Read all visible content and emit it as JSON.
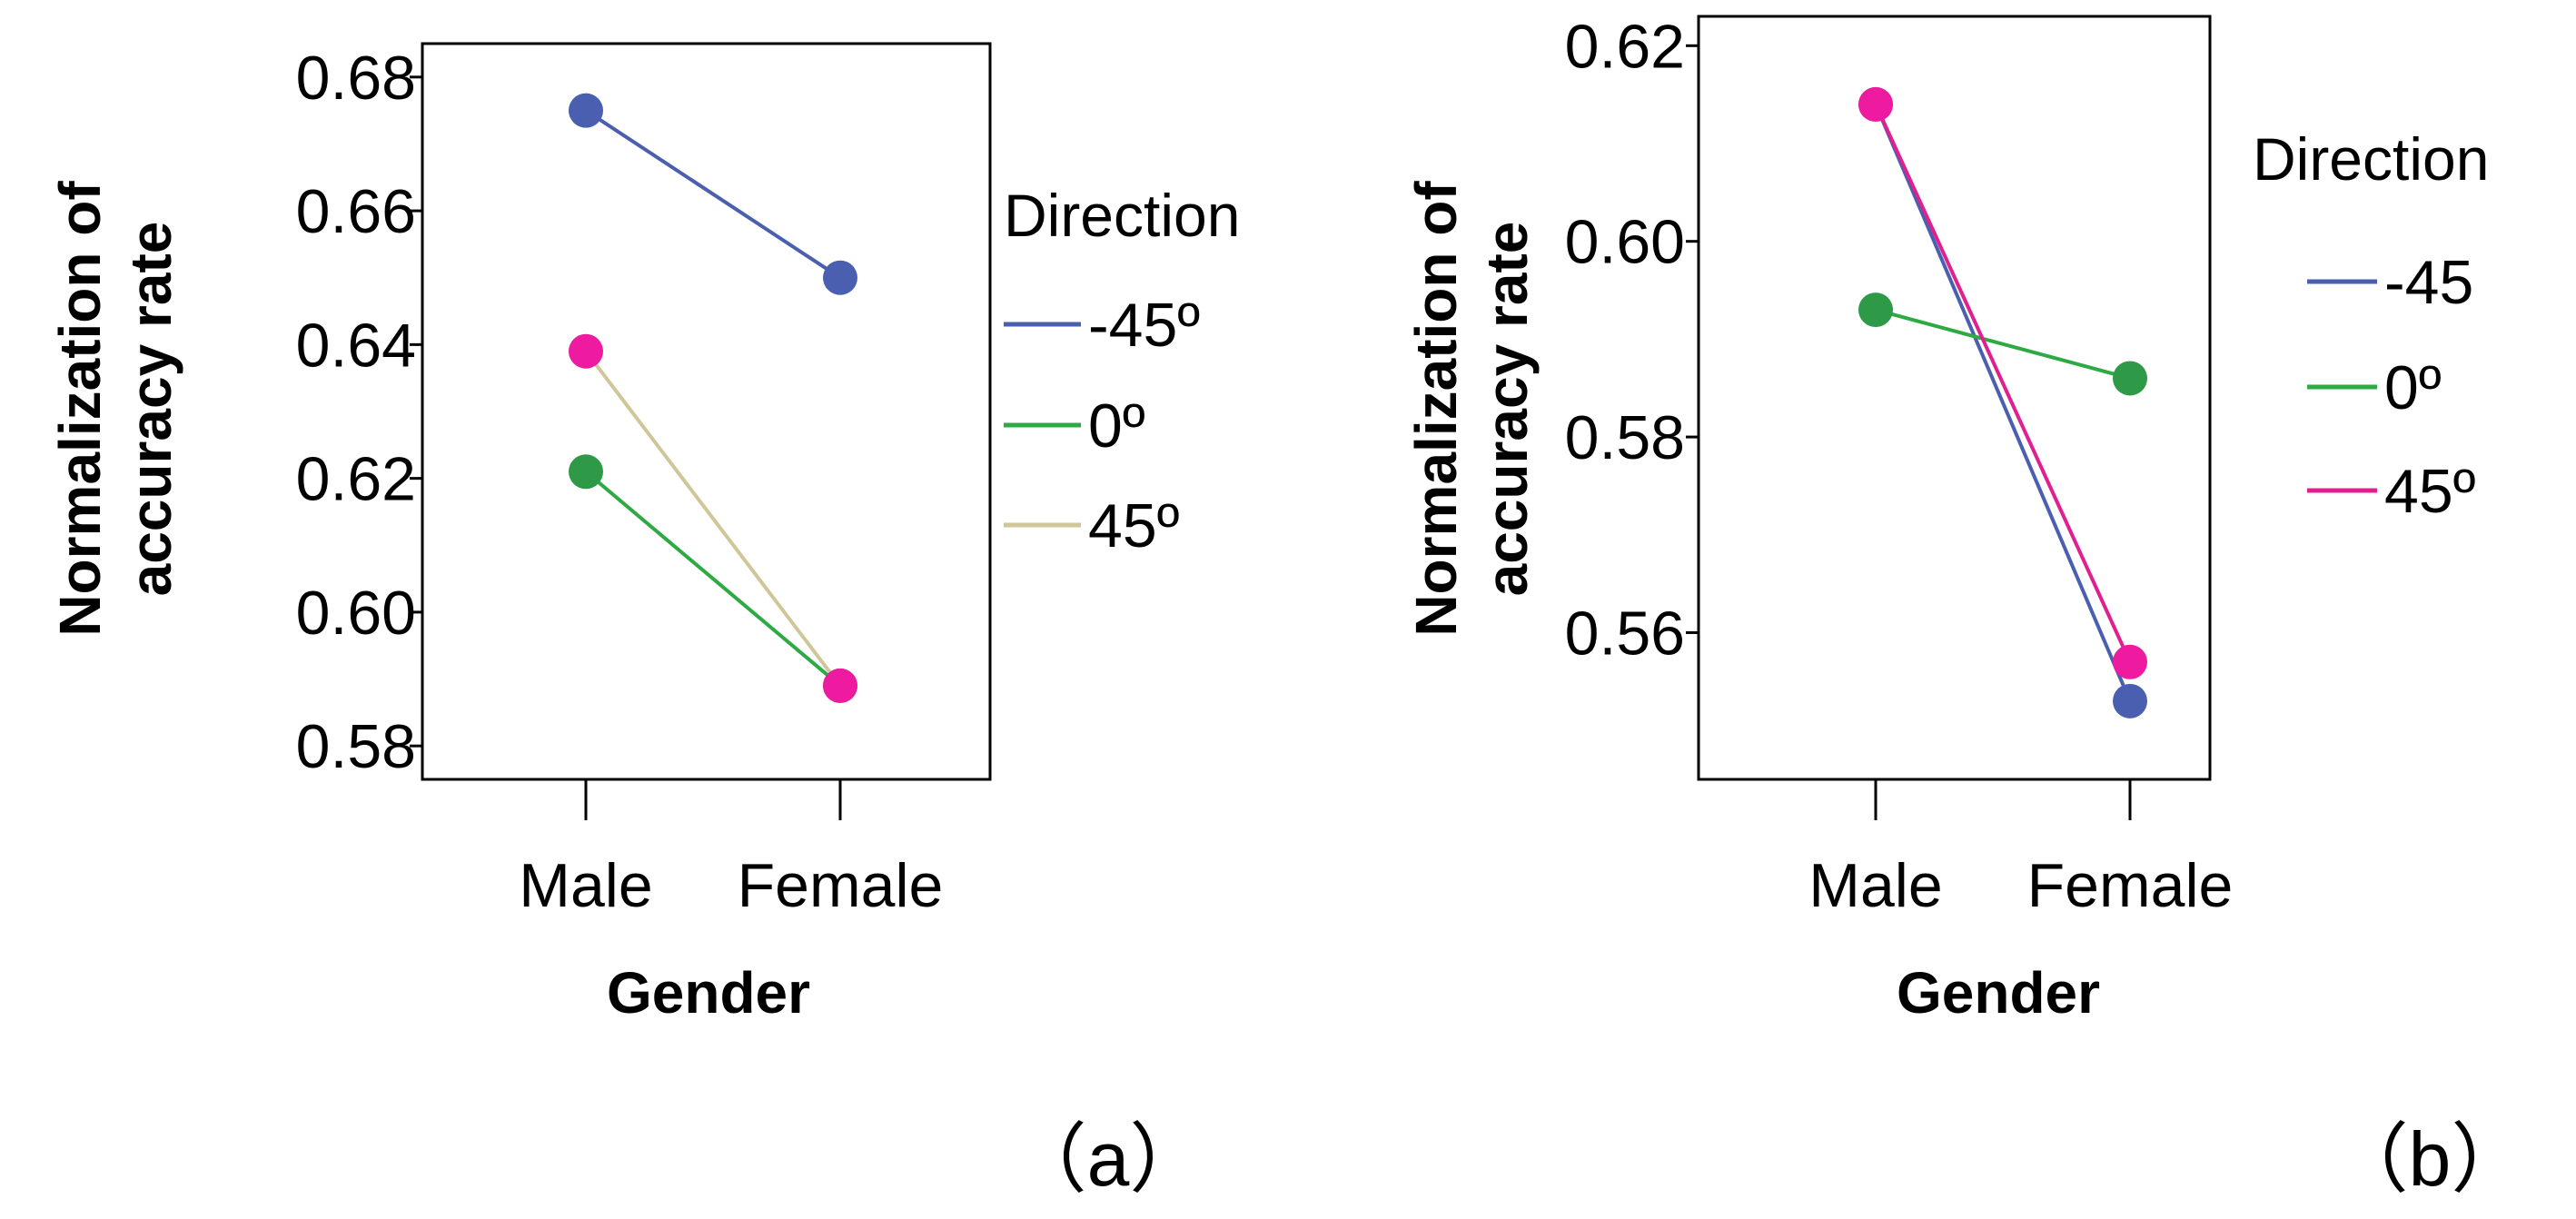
{
  "chart_data": [
    {
      "type": "line",
      "panel_label": "（a）",
      "categories": [
        "Male",
        "Female"
      ],
      "xlabel": "Gender",
      "ylabel": "Normalization of accuracy rate",
      "ylabel_lines": [
        "Normalization of",
        "accuracy rate"
      ],
      "ylim": [
        0.575,
        0.685
      ],
      "yticks": [
        "0.58",
        "0.60",
        "0.62",
        "0.64",
        "0.66",
        "0.68"
      ],
      "grid": false,
      "legend_title": "Direction",
      "legend_placement": "right",
      "series": [
        {
          "name": "-45º",
          "values": [
            0.675,
            0.65
          ],
          "line_color": "#4a5fb0",
          "point_color": "#4a5fb0"
        },
        {
          "name": "0º",
          "values": [
            0.621,
            0.589
          ],
          "line_color": "#2eaa44",
          "point_color": "#2e9a48"
        },
        {
          "name": "45º",
          "values": [
            0.639,
            0.589
          ],
          "line_color": "#cfc79a",
          "point_color": "#ee1aa0"
        }
      ]
    },
    {
      "type": "line",
      "panel_label": "（b）",
      "categories": [
        "Male",
        "Female"
      ],
      "xlabel": "Gender",
      "ylabel": "Normalization of accuracy rate",
      "ylabel_lines": [
        "Normalization of",
        "accuracy rate"
      ],
      "ylim": [
        0.545,
        0.623
      ],
      "yticks": [
        "0.56",
        "0.58",
        "0.60",
        "0.62"
      ],
      "grid": false,
      "legend_title": "Direction",
      "legend_placement": "right",
      "series": [
        {
          "name": "-45",
          "values": [
            0.614,
            0.553
          ],
          "line_color": "#4a5fb0",
          "point_color": "#4a5fb0"
        },
        {
          "name": "0º",
          "values": [
            0.593,
            0.586
          ],
          "line_color": "#2eaa44",
          "point_color": "#2e9a48"
        },
        {
          "name": "45º",
          "values": [
            0.614,
            0.557
          ],
          "line_color": "#e0208f",
          "point_color": "#ee1aa0"
        }
      ]
    }
  ]
}
